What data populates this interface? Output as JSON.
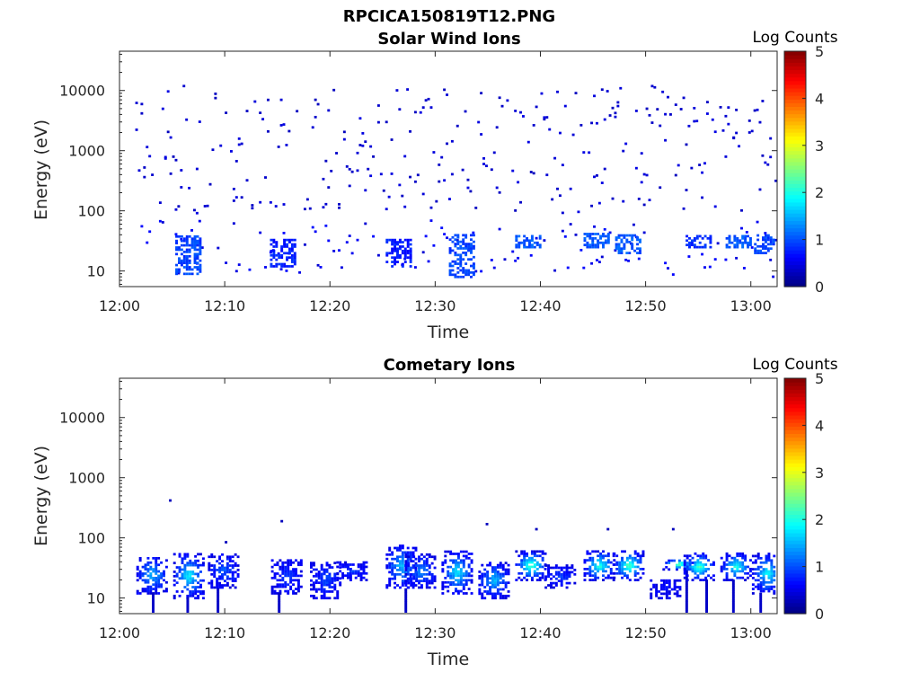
{
  "figure": {
    "title": "RPCICA150819T12.PNG"
  },
  "chart_data": [
    {
      "type": "heatmap",
      "title": "Solar Wind Ions",
      "xlabel": "Time",
      "ylabel": "Energy (eV)",
      "x_ticks": [
        "12:00",
        "12:10",
        "12:20",
        "12:30",
        "12:40",
        "12:50",
        "13:00"
      ],
      "xlim_minutes": [
        0,
        62.5
      ],
      "y_scale": "log",
      "y_ticks": [
        {
          "value": 10,
          "label": "10"
        },
        {
          "value": 100,
          "label": "100"
        },
        {
          "value": 1000,
          "label": "1000"
        },
        {
          "value": 10000,
          "label": "10000"
        }
      ],
      "ylim": [
        5.5,
        45000
      ],
      "colorbar": {
        "label": "Log Counts",
        "range": [
          0,
          5
        ],
        "ticks": [
          "0",
          "1",
          "2",
          "3",
          "4",
          "5"
        ],
        "colormap": "jet"
      },
      "grid": false,
      "description_seed": 4711,
      "sparse_region": {
        "energy_range": [
          90,
          12000
        ],
        "level": 0.3
      },
      "clusters": [
        {
          "t": 6.5,
          "e_lo": 9,
          "e_hi": 40,
          "level": 0.8
        },
        {
          "t": 15.5,
          "e_lo": 12,
          "e_hi": 35,
          "level": 0.6
        },
        {
          "t": 26.5,
          "e_lo": 12,
          "e_hi": 35,
          "level": 0.6
        },
        {
          "t": 32.5,
          "e_lo": 8,
          "e_hi": 40,
          "level": 0.8
        },
        {
          "t": 38.8,
          "e_lo": 25,
          "e_hi": 40,
          "level": 0.9
        },
        {
          "t": 45.3,
          "e_lo": 25,
          "e_hi": 45,
          "level": 0.9
        },
        {
          "t": 48.3,
          "e_lo": 20,
          "e_hi": 40,
          "level": 0.9
        },
        {
          "t": 55.0,
          "e_lo": 25,
          "e_hi": 40,
          "level": 0.7
        },
        {
          "t": 58.8,
          "e_lo": 25,
          "e_hi": 40,
          "level": 0.9
        },
        {
          "t": 61.5,
          "e_lo": 20,
          "e_hi": 40,
          "level": 0.8
        }
      ]
    },
    {
      "type": "heatmap",
      "title": "Cometary Ions",
      "xlabel": "Time",
      "ylabel": "Energy (eV)",
      "x_ticks": [
        "12:00",
        "12:10",
        "12:20",
        "12:30",
        "12:40",
        "12:50",
        "13:00"
      ],
      "xlim_minutes": [
        0,
        62.5
      ],
      "y_scale": "log",
      "y_ticks": [
        {
          "value": 10,
          "label": "10"
        },
        {
          "value": 100,
          "label": "100"
        },
        {
          "value": 1000,
          "label": "1000"
        },
        {
          "value": 10000,
          "label": "10000"
        }
      ],
      "ylim": [
        5.5,
        45000
      ],
      "colorbar": {
        "label": "Log Counts",
        "range": [
          0,
          5
        ],
        "ticks": [
          "0",
          "1",
          "2",
          "3",
          "4",
          "5"
        ],
        "colormap": "jet"
      },
      "grid": false,
      "bursts": [
        {
          "t": 3.0,
          "e_lo": 12,
          "e_hi": 50,
          "peak": 1.5
        },
        {
          "t": 6.5,
          "e_lo": 10,
          "e_hi": 55,
          "peak": 1.8
        },
        {
          "t": 9.8,
          "e_lo": 15,
          "e_hi": 55,
          "peak": 1.0
        },
        {
          "t": 15.8,
          "e_lo": 12,
          "e_hi": 45,
          "peak": 0.8
        },
        {
          "t": 19.5,
          "e_lo": 10,
          "e_hi": 40,
          "peak": 0.9
        },
        {
          "t": 22.0,
          "e_lo": 20,
          "e_hi": 40,
          "peak": 0.8
        },
        {
          "t": 26.7,
          "e_lo": 15,
          "e_hi": 80,
          "peak": 1.5
        },
        {
          "t": 28.5,
          "e_lo": 15,
          "e_hi": 55,
          "peak": 1.2
        },
        {
          "t": 32.0,
          "e_lo": 12,
          "e_hi": 60,
          "peak": 1.8
        },
        {
          "t": 35.5,
          "e_lo": 10,
          "e_hi": 40,
          "peak": 1.5
        },
        {
          "t": 39.0,
          "e_lo": 20,
          "e_hi": 60,
          "peak": 2.3
        },
        {
          "t": 41.8,
          "e_lo": 15,
          "e_hi": 35,
          "peak": 0.8
        },
        {
          "t": 45.5,
          "e_lo": 20,
          "e_hi": 60,
          "peak": 2.1
        },
        {
          "t": 48.3,
          "e_lo": 20,
          "e_hi": 60,
          "peak": 2.3
        },
        {
          "t": 51.8,
          "e_lo": 10,
          "e_hi": 20,
          "peak": 0.5
        },
        {
          "t": 53.0,
          "e_lo": 30,
          "e_hi": 45,
          "peak": 2.5
        },
        {
          "t": 55.0,
          "e_lo": 20,
          "e_hi": 55,
          "peak": 2.2
        },
        {
          "t": 58.5,
          "e_lo": 20,
          "e_hi": 55,
          "peak": 2.0
        },
        {
          "t": 61.5,
          "e_lo": 12,
          "e_hi": 55,
          "peak": 1.8
        }
      ],
      "isolated_points": [
        {
          "t": 4.7,
          "e": 420,
          "level": 0.3
        },
        {
          "t": 10.0,
          "e": 85,
          "level": 0.3
        },
        {
          "t": 15.3,
          "e": 190,
          "level": 0.3
        },
        {
          "t": 34.8,
          "e": 170,
          "level": 0.3
        },
        {
          "t": 39.5,
          "e": 140,
          "level": 0.3
        },
        {
          "t": 46.3,
          "e": 140,
          "level": 0.3
        },
        {
          "t": 52.5,
          "e": 140,
          "level": 0.3
        }
      ]
    }
  ]
}
